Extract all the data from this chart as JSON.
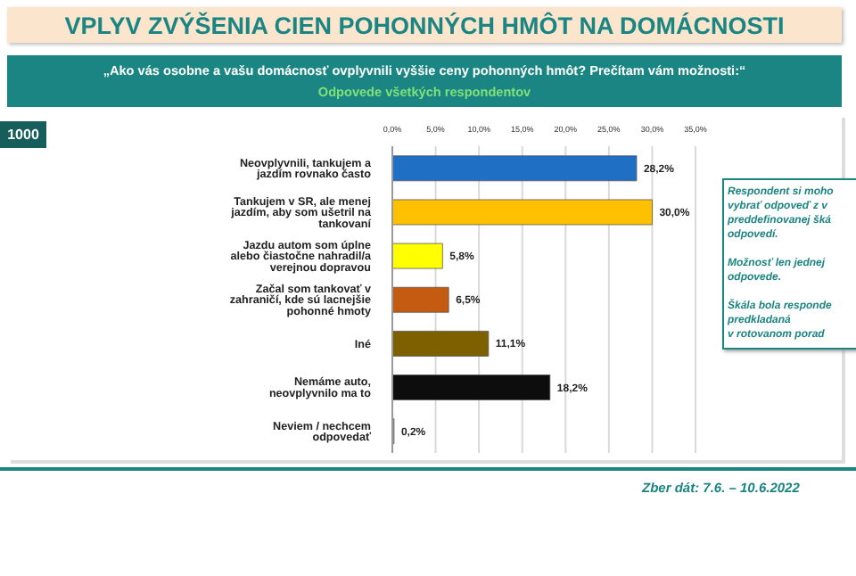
{
  "chart_data": {
    "type": "bar",
    "orientation": "horizontal",
    "title": "VPLYV ZVÝŠENIA CIEN POHONNÝCH HMÔT NA DOMÁCNOSTI",
    "subtitle": "„Ako vás osobne a vašu domácnosť ovplyvnili vyššie ceny pohonných hmôt? Prečítam vám možnosti:“",
    "categories": [
      "Neovplyvnili, tankujem a jazdím rovnako často",
      "Tankujem v SR, ale menej jazdím, aby som ušetril na tankovaní",
      "Jazdu autom som úplne alebo čiastočne nahradil/a verejnou dopravou",
      "Začal som tankovať v zahraničí, kde sú lacnejšie pohonné hmoty",
      "Iné",
      "Nemáme auto, neovplyvnilo ma to",
      "Neviem / nechcem odpovedať"
    ],
    "values": [
      28.2,
      30.0,
      5.8,
      6.5,
      11.1,
      18.2,
      0.2
    ],
    "colors": [
      "#1f6fc5",
      "#ffc000",
      "#ffff00",
      "#c55a11",
      "#7f6000",
      "#0d0d0d",
      "#a6a6a6"
    ],
    "value_labels": [
      "28,2%",
      "30,0%",
      "5,8%",
      "6,5%",
      "11,1%",
      "18,2%",
      "0,2%"
    ],
    "xlim": [
      0,
      35
    ],
    "xticks": [
      {
        "value": 0,
        "label": "0,0%"
      },
      {
        "value": 5,
        "label": "5,0%"
      },
      {
        "value": 10,
        "label": "10,0%"
      },
      {
        "value": 15,
        "label": "15,0%"
      },
      {
        "value": 20,
        "label": "20,0%"
      },
      {
        "value": 25,
        "label": "25,0%"
      },
      {
        "value": 30,
        "label": "30,0%"
      },
      {
        "value": 35,
        "label": "35,0%"
      }
    ],
    "grid": "x",
    "annotations": [
      "Odpovede všetkých respondentov",
      "1000",
      "Respondent si moho\nvybrať odpoveď z v\npreddefinovanej šká\nodpovedí.\n\nMožnosť len jednej\nodpovede.\n\nŠkála bola responde\npredkladaná\nv rotovanom porad",
      "Zber dát: 7.6. – 10.6.2022"
    ]
  }
}
